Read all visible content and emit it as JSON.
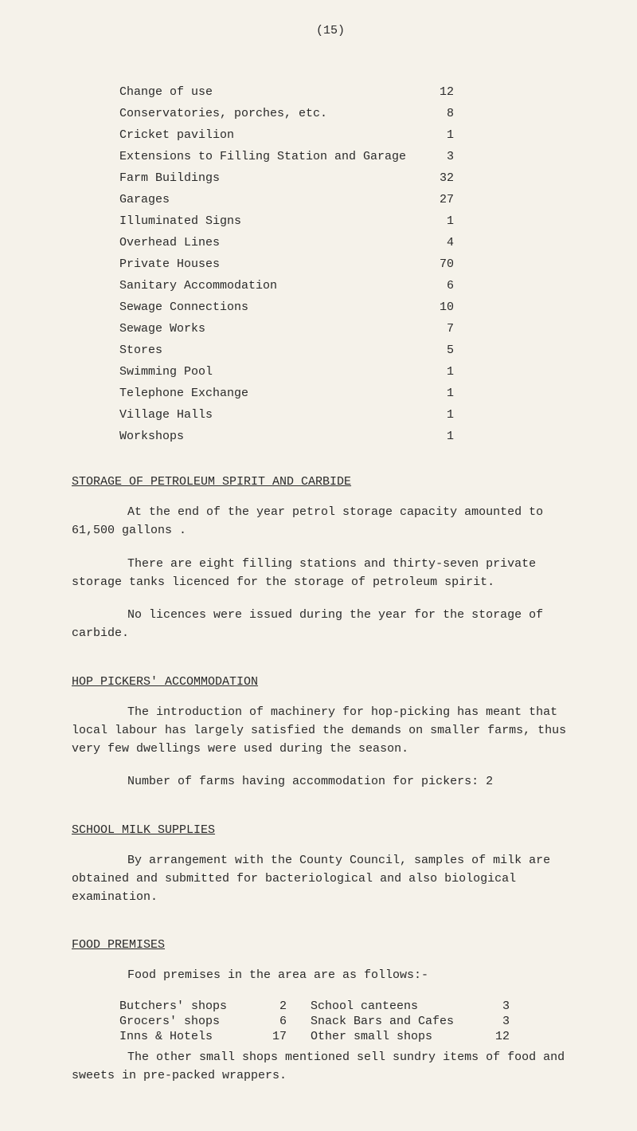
{
  "page_number": "(15)",
  "table": [
    {
      "label": "Change of use",
      "value": "12"
    },
    {
      "label": "Conservatories, porches, etc.",
      "value": "8"
    },
    {
      "label": "Cricket pavilion",
      "value": "1"
    },
    {
      "label": "Extensions to Filling Station and Garage",
      "value": "3"
    },
    {
      "label": "Farm Buildings",
      "value": "32"
    },
    {
      "label": "Garages",
      "value": "27"
    },
    {
      "label": "Illuminated Signs",
      "value": "1"
    },
    {
      "label": "Overhead Lines",
      "value": "4"
    },
    {
      "label": "Private Houses",
      "value": "70"
    },
    {
      "label": "Sanitary Accommodation",
      "value": "6"
    },
    {
      "label": "Sewage Connections",
      "value": "10"
    },
    {
      "label": "Sewage Works",
      "value": "7"
    },
    {
      "label": "Stores",
      "value": "5"
    },
    {
      "label": "Swimming Pool",
      "value": "1"
    },
    {
      "label": "Telephone Exchange",
      "value": "1"
    },
    {
      "label": "Village Halls",
      "value": "1"
    },
    {
      "label": "Workshops",
      "value": "1"
    }
  ],
  "sections": {
    "storage": {
      "heading": "STORAGE OF PETROLEUM SPIRIT AND CARBIDE",
      "p1": "At the end of the year petrol storage capacity amounted to 61,500 gallons .",
      "p2": "There are eight filling stations and thirty-seven private storage tanks licenced for the storage of petroleum spirit.",
      "p3": "No licences were issued during the year for the storage of carbide."
    },
    "hop": {
      "heading": "HOP PICKERS' ACCOMMODATION",
      "p1": "The introduction of machinery for hop-picking has meant that local labour has largely satisfied the demands on smaller farms, thus very few dwellings were used during the season.",
      "p2": "Number of farms having accommodation for pickers:  2"
    },
    "school": {
      "heading": "SCHOOL MILK SUPPLIES",
      "p1": "By arrangement with the County Council, samples of milk are obtained and submitted for bacteriological and also biological examination."
    },
    "food": {
      "heading": "FOOD PREMISES",
      "intro": "Food premises in the area are as follows:-",
      "rows": [
        {
          "a": "Butchers' shops",
          "av": "2",
          "b": "School canteens",
          "bv": "3"
        },
        {
          "a": "Grocers' shops",
          "av": "6",
          "b": "Snack Bars and Cafes",
          "bv": "3"
        },
        {
          "a": "Inns & Hotels",
          "av": "17",
          "b": "Other small shops",
          "bv": "12"
        }
      ],
      "p2": "The other small shops mentioned sell sundry items of food and sweets in pre-packed wrappers."
    }
  }
}
